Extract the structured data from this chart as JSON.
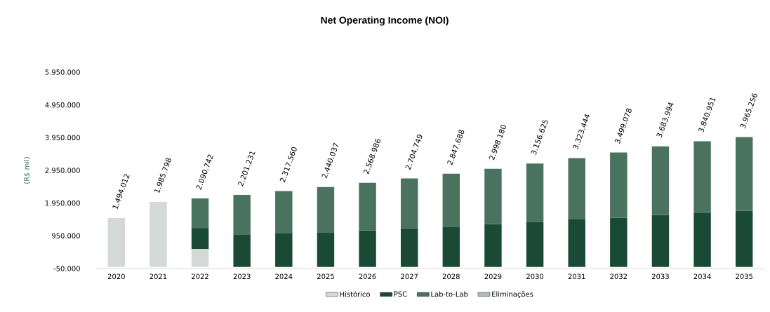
{
  "chart_data": {
    "type": "bar",
    "title": "Net Operating Income (NOI)",
    "ylabel": "(R$ mil)",
    "stacked": true,
    "legend": "bottom",
    "categories": [
      "2020",
      "2021",
      "2022",
      "2023",
      "2024",
      "2025",
      "2026",
      "2027",
      "2028",
      "2029",
      "2030",
      "2031",
      "2032",
      "2033",
      "2034",
      "2035"
    ],
    "series": [
      {
        "name": "Histórico",
        "color": "#d3d9d6",
        "values": [
          1494012,
          1985798,
          550000,
          null,
          null,
          null,
          null,
          null,
          null,
          null,
          null,
          null,
          null,
          null,
          null,
          null
        ]
      },
      {
        "name": "PSC",
        "color": "#1a4a36",
        "values": [
          null,
          null,
          640000,
          980000,
          1020000,
          1060000,
          1110000,
          1180000,
          1230000,
          1310000,
          1380000,
          1450000,
          1500000,
          1590000,
          1660000,
          1720000
        ]
      },
      {
        "name": "Lab-to-Lab",
        "color": "#4a735f",
        "values": [
          null,
          null,
          900742,
          1221231,
          1297560,
          1380037,
          1458986,
          1524749,
          1617688,
          1688180,
          1776625,
          1873444,
          1999078,
          2093994,
          2180951,
          2245256
        ]
      },
      {
        "name": "Eliminações",
        "color": "#a9bdb3",
        "values": [
          null,
          null,
          null,
          null,
          null,
          null,
          null,
          null,
          null,
          null,
          null,
          null,
          null,
          null,
          null,
          null
        ]
      }
    ],
    "totals": [
      "1.494.012",
      "1.985.798",
      "2.090.742",
      "2.201.231",
      "2.317.560",
      "2.440.037",
      "2.568.986",
      "2.704.749",
      "2.847.688",
      "2.998.180",
      "3.156.625",
      "3.323.444",
      "3.499.078",
      "3.683.994",
      "3.840.951",
      "3.965.256"
    ],
    "ylim": [
      -50000,
      5950000
    ],
    "yticks": [
      {
        "value": -50000,
        "label": "-50.000"
      },
      {
        "value": 950000,
        "label": "950.000"
      },
      {
        "value": 1950000,
        "label": "1.950.000"
      },
      {
        "value": 2950000,
        "label": "2.950.000"
      },
      {
        "value": 3950000,
        "label": "3.950.000"
      },
      {
        "value": 4950000,
        "label": "4.950.000"
      },
      {
        "value": 5950000,
        "label": "5.950.000"
      }
    ]
  }
}
